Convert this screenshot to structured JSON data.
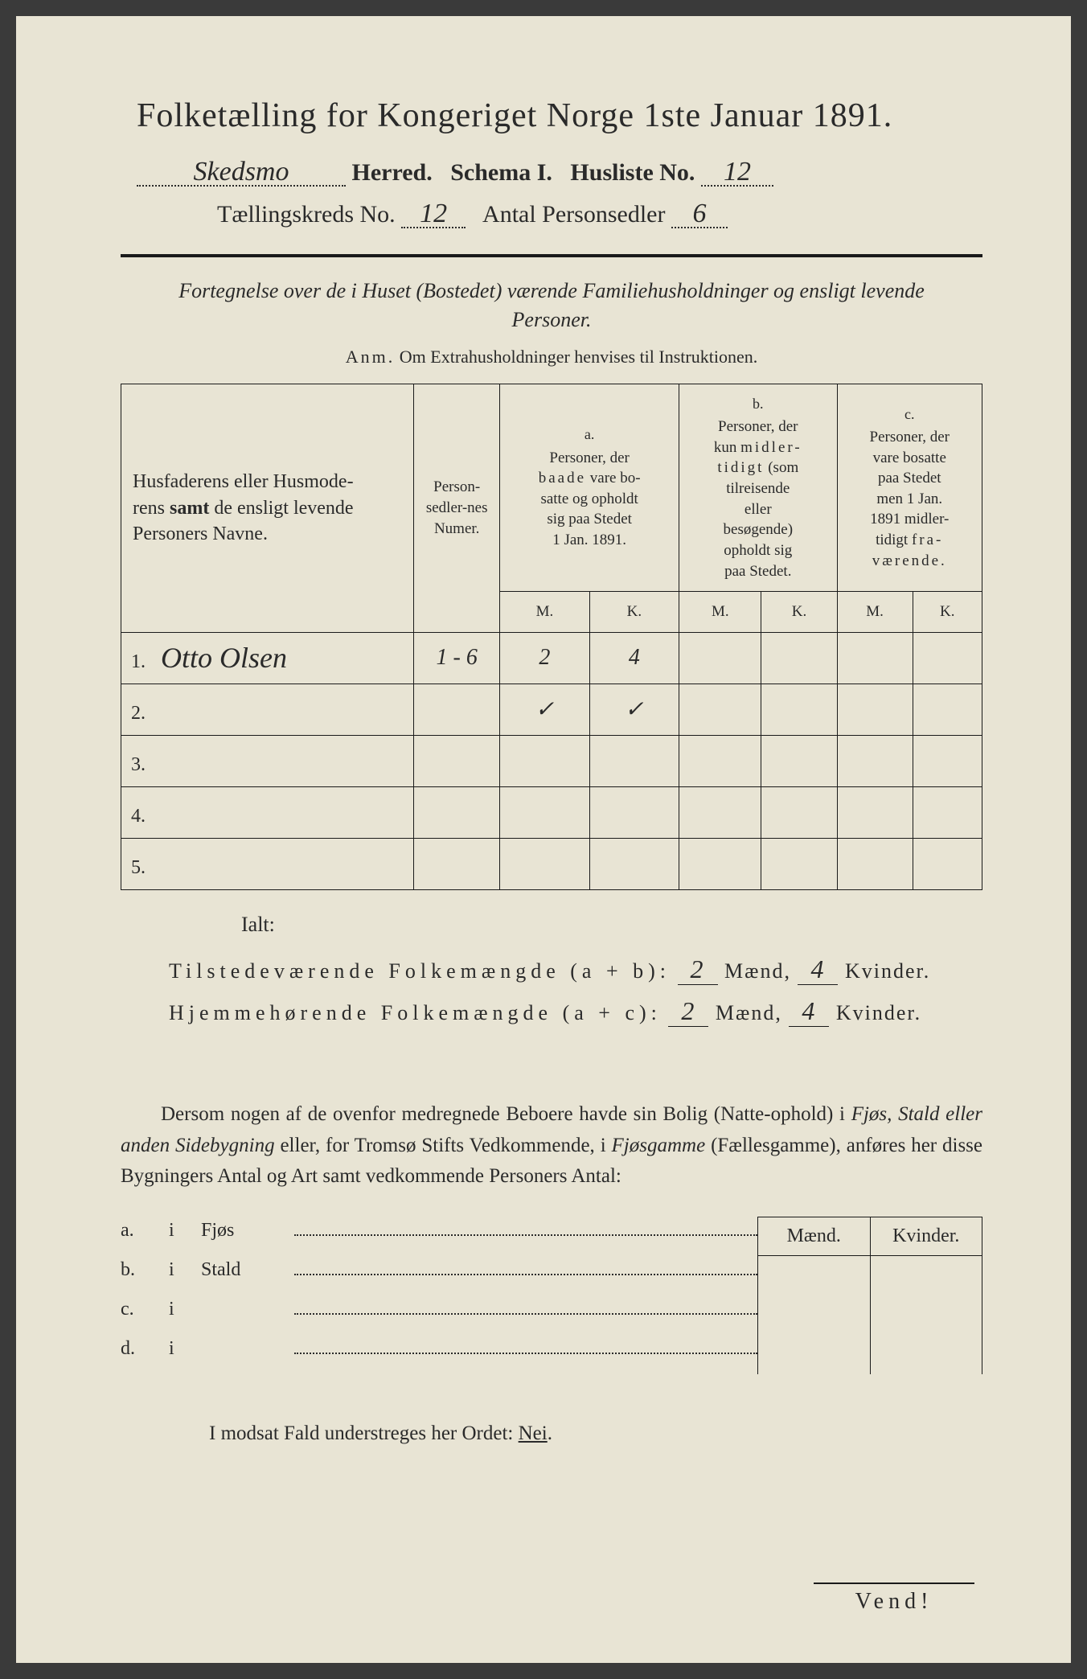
{
  "title": "Folketælling for Kongeriget Norge 1ste Januar 1891.",
  "header": {
    "herred_value": "Skedsmo",
    "herred_label": "Herred.",
    "schema_label": "Schema I.",
    "husliste_label": "Husliste No.",
    "husliste_value": "12",
    "kreds_label": "Tællingskreds No.",
    "kreds_value": "12",
    "antal_label": "Antal Personsedler",
    "antal_value": "6"
  },
  "fortegnelse": "Fortegnelse over de i Huset (Bostedet) værende Familiehusholdninger og ensligt levende Personer.",
  "anm_lead": "Anm.",
  "anm_text": "Om Extrahusholdninger henvises til Instruktionen.",
  "table": {
    "col_name": "Husfaderens eller Husmoderens samt de ensligt levende Personers Navne.",
    "col_num": "Person-sedler-nes Numer.",
    "col_a_letter": "a.",
    "col_a": "Personer, der baade vare bosatte og opholdt sig paa Stedet 1 Jan. 1891.",
    "col_b_letter": "b.",
    "col_b": "Personer, der kun midlertidigt (som tilreisende eller besøgende) opholdt sig paa Stedet.",
    "col_c_letter": "c.",
    "col_c": "Personer, der vare bosatte paa Stedet men 1 Jan. 1891 midlertidigt fraværende.",
    "m": "M.",
    "k": "K.",
    "rows": [
      {
        "num": "1.",
        "name": "Otto Olsen",
        "pnum": "1 - 6",
        "a_m": "2",
        "a_k": "4",
        "b_m": "",
        "b_k": "",
        "c_m": "",
        "c_k": ""
      },
      {
        "num": "2.",
        "name": "",
        "pnum": "",
        "a_m": "✓",
        "a_k": "✓",
        "b_m": "",
        "b_k": "",
        "c_m": "",
        "c_k": ""
      },
      {
        "num": "3.",
        "name": "",
        "pnum": "",
        "a_m": "",
        "a_k": "",
        "b_m": "",
        "b_k": "",
        "c_m": "",
        "c_k": ""
      },
      {
        "num": "4.",
        "name": "",
        "pnum": "",
        "a_m": "",
        "a_k": "",
        "b_m": "",
        "b_k": "",
        "c_m": "",
        "c_k": ""
      },
      {
        "num": "5.",
        "name": "",
        "pnum": "",
        "a_m": "",
        "a_k": "",
        "b_m": "",
        "b_k": "",
        "c_m": "",
        "c_k": ""
      }
    ]
  },
  "ialt": "Ialt:",
  "summary": {
    "line1_label": "Tilstedeværende Folkemængde (a + b):",
    "line2_label": "Hjemmehørende Folkemængde (a + c):",
    "maend": "Mænd,",
    "kvinder": "Kvinder.",
    "l1_m": "2",
    "l1_k": "4",
    "l2_m": "2",
    "l2_k": "4"
  },
  "dersom": "Dersom nogen af de ovenfor medregnede Beboere havde sin Bolig (Natte-ophold) i Fjøs, Stald eller anden Sidebygning eller, for Tromsø Stifts Vedkommende, i Fjøsgamme (Fællesgamme), anføres her disse Bygningers Antal og Art samt vedkommende Personers Antal:",
  "sb": {
    "maend": "Mænd.",
    "kvinder": "Kvinder.",
    "rows": [
      {
        "l": "a.",
        "i": "i",
        "name": "Fjøs"
      },
      {
        "l": "b.",
        "i": "i",
        "name": "Stald"
      },
      {
        "l": "c.",
        "i": "i",
        "name": ""
      },
      {
        "l": "d.",
        "i": "i",
        "name": ""
      }
    ]
  },
  "modsat": "I modsat Fald understreges her Ordet: Nei.",
  "vend": "Vend!"
}
